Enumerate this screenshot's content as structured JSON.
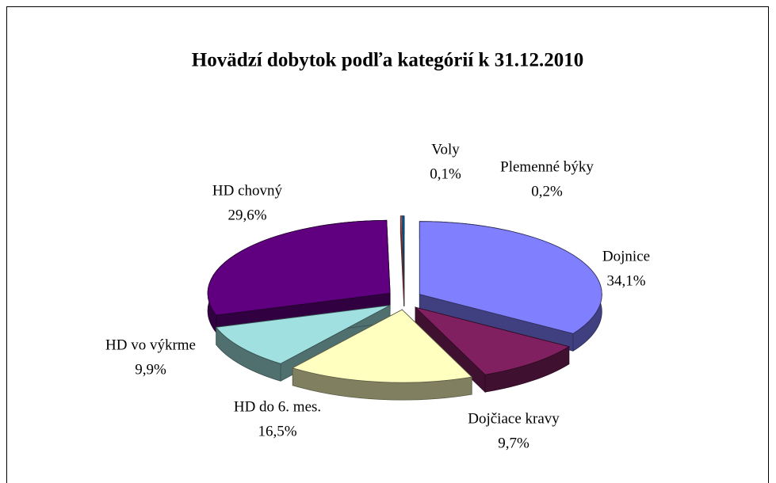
{
  "chart_data": {
    "type": "pie",
    "title": "Hovädzí dobytok podľa kategórií k 31.12.2010",
    "categories": [
      "Dojnice",
      "Dojčiace kravy",
      "HD do 6. mes.",
      "HD vo výkrme",
      "HD chovný",
      "Voly",
      "Plemenné býky"
    ],
    "values": [
      34.1,
      9.7,
      16.5,
      9.9,
      29.6,
      0.1,
      0.2
    ],
    "value_labels": [
      "34,1%",
      "9,7%",
      "16,5%",
      "9,9%",
      "29,6%",
      "0,1%",
      "0,2%"
    ],
    "colors": [
      "#8080ff",
      "#802060",
      "#ffffc0",
      "#a0e0e0",
      "#600080",
      "#ff8080",
      "#0066aa"
    ]
  }
}
